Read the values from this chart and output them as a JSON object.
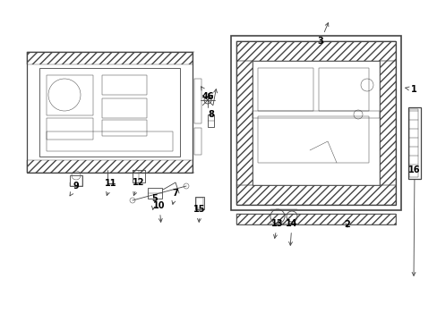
{
  "bg_color": "#ffffff",
  "lc": "#444444",
  "figsize": [
    4.89,
    3.6
  ],
  "dpi": 100
}
